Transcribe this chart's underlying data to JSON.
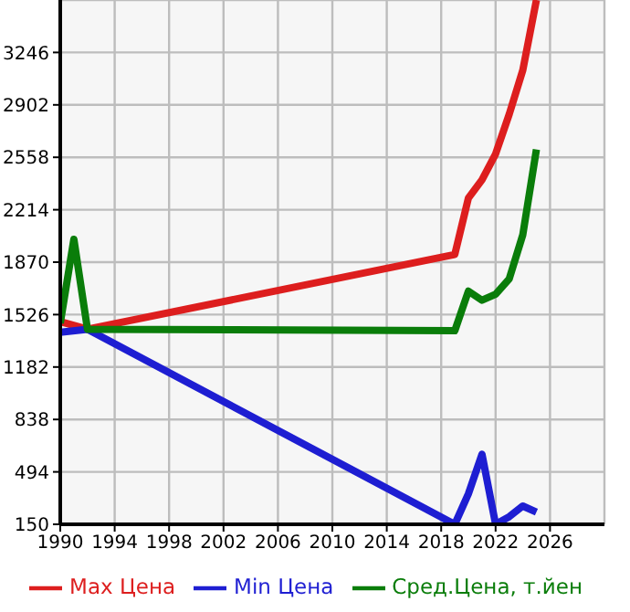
{
  "chart_data": {
    "type": "line",
    "x": [
      1990,
      1991,
      1992,
      2019,
      2020,
      2021,
      2022,
      2023,
      2024,
      2025
    ],
    "series": [
      {
        "name": "Max Цена",
        "color": "#dd1e1e",
        "values": [
          1480,
          null,
          1430,
          1920,
          2290,
          2410,
          2580,
          2840,
          3130,
          3590
        ]
      },
      {
        "name": "Min Цена",
        "color": "#1e1ed2",
        "values": [
          1410,
          null,
          1430,
          150,
          350,
          610,
          150,
          200,
          270,
          230
        ]
      },
      {
        "name": "Сред.Цена, т.йен",
        "color": "#0a7d0a",
        "values": [
          1470,
          2020,
          1430,
          1420,
          1680,
          1620,
          1660,
          1760,
          2050,
          2610
        ]
      }
    ],
    "xlim": [
      1990,
      2030
    ],
    "xticks": [
      1990,
      1994,
      1998,
      2002,
      2006,
      2010,
      2014,
      2018,
      2022,
      2026
    ],
    "ylim": [
      150,
      3590
    ],
    "yticks": [
      150,
      494,
      838,
      1182,
      1526,
      1870,
      2214,
      2558,
      2902,
      3246
    ],
    "grid": true,
    "legend": "bottom",
    "marker": "none",
    "line_style": "solid"
  }
}
